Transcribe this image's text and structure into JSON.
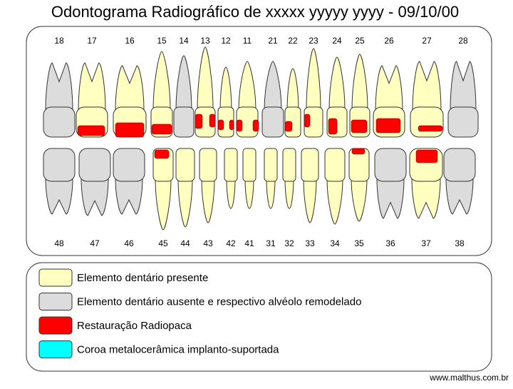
{
  "title": "Odontograma Radiográfico de xxxxx  yyyyy  yyyy - 09/10/00",
  "upper_teeth": [
    "18",
    "17",
    "16",
    "15",
    "14",
    "13",
    "12",
    "11",
    "21",
    "22",
    "23",
    "24",
    "25",
    "26",
    "27",
    "28"
  ],
  "lower_teeth": [
    "48",
    "47",
    "46",
    "45",
    "44",
    "43",
    "42",
    "41",
    "31",
    "32",
    "33",
    "34",
    "35",
    "36",
    "37",
    "38"
  ],
  "legend": [
    {
      "label": "Elemento dentário presente",
      "color": "#ffffc0"
    },
    {
      "label": "Elemento dentário ausente e respectivo alvéolo remodelado",
      "color": "#dcdcdc"
    },
    {
      "label": "Restauração Radiopaca",
      "color": "#ff0000"
    },
    {
      "label": "Coroa metalocerâmica implanto-suportada",
      "color": "#00ffff"
    }
  ],
  "footer": "www.malthus.com.br"
}
